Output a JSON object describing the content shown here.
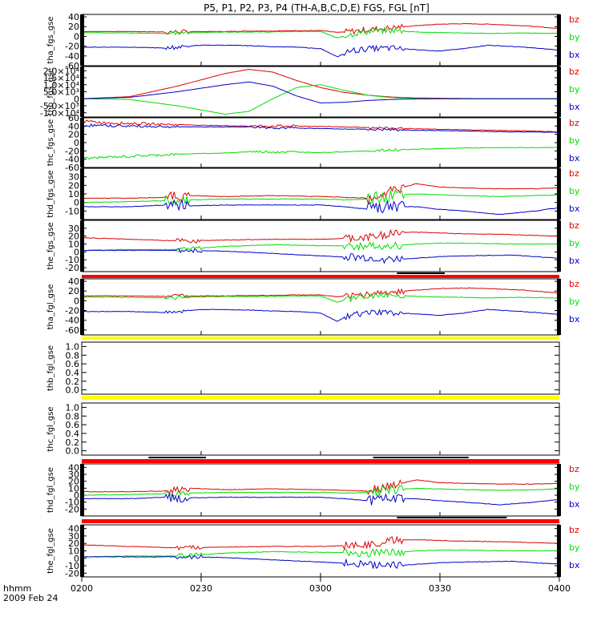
{
  "title": "P5, P1, P2, P3, P4 (TH-A,B,C,D,E) FGS, FGL [nT]",
  "colors": {
    "bz": "#dd0000",
    "by": "#00dd00",
    "bx": "#0000cc",
    "flag_red": "#ff0000",
    "flag_yellow": "#ffff00",
    "bar": "#000000"
  },
  "footer": {
    "unit": "hhmm",
    "date": "2009 Feb 24"
  },
  "chart_data": [
    {
      "type": "line",
      "label": "tha_fgs_gse",
      "ylim": [
        -60,
        45
      ],
      "ticks": [
        "40",
        "20",
        "0",
        "-20",
        "-40",
        "-60"
      ],
      "tickvals": [
        40,
        20,
        0,
        -20,
        -40,
        -60
      ],
      "legend": [
        "bz",
        "by",
        "bx"
      ],
      "x_hours": [
        2.0,
        2.2,
        2.35,
        2.5,
        2.6,
        2.7,
        2.8,
        2.9,
        3.0,
        3.07,
        3.12,
        3.2,
        3.3,
        3.4,
        3.5,
        3.6,
        3.7,
        3.85,
        4.0
      ],
      "series": [
        {
          "name": "bz",
          "values": [
            10,
            10,
            9,
            10,
            10,
            11,
            11,
            12,
            12,
            8,
            10,
            14,
            18,
            22,
            25,
            26,
            25,
            22,
            16
          ]
        },
        {
          "name": "by",
          "values": [
            8,
            7,
            6,
            8,
            9,
            9,
            9,
            10,
            10,
            -3,
            4,
            10,
            12,
            9,
            8,
            7,
            6,
            7,
            6
          ]
        },
        {
          "name": "bx",
          "values": [
            -22,
            -22,
            -24,
            -18,
            -18,
            -19,
            -21,
            -22,
            -25,
            -42,
            -30,
            -25,
            -24,
            -27,
            -30,
            -25,
            -18,
            -22,
            -28
          ]
        }
      ],
      "noise": [
        [
          2.35,
          2.45,
          4
        ],
        [
          3.1,
          3.35,
          6
        ]
      ]
    },
    {
      "type": "line",
      "label": "thb_fgs_gse",
      "ylim": [
        -13000,
        23000
      ],
      "ticks": [
        "2.0×10⁴",
        "1.5×10⁴",
        "1.0×10⁴",
        "5.0×10³",
        "0",
        "-5.0×10³",
        "-1.0×10⁴"
      ],
      "tickvals": [
        20000,
        15000,
        10000,
        5000,
        0,
        -5000,
        -10000
      ],
      "legend": [
        "bz",
        "by",
        "bx"
      ],
      "x_hours": [
        2.0,
        2.2,
        2.4,
        2.6,
        2.7,
        2.8,
        2.9,
        3.0,
        3.1,
        3.2,
        3.3,
        3.4,
        3.6,
        3.8,
        4.0
      ],
      "series": [
        {
          "name": "bz",
          "values": [
            0,
            1500,
            9000,
            18000,
            21000,
            19000,
            13000,
            8000,
            4500,
            2500,
            1200,
            600,
            200,
            0,
            0
          ]
        },
        {
          "name": "by",
          "values": [
            0,
            -500,
            -5000,
            -11000,
            -9000,
            0,
            8000,
            10000,
            6000,
            2500,
            800,
            200,
            0,
            0,
            0
          ]
        },
        {
          "name": "bx",
          "values": [
            0,
            1000,
            5000,
            10000,
            12000,
            9000,
            2000,
            -3000,
            -2500,
            -1200,
            -500,
            -100,
            0,
            0,
            0
          ]
        }
      ],
      "noise": []
    },
    {
      "type": "line",
      "label": "thc_fgs_gse",
      "ylim": [
        -60,
        60
      ],
      "ticks": [
        "60",
        "40",
        "20",
        "0",
        "-20",
        "-40",
        "-60"
      ],
      "tickvals": [
        60,
        40,
        20,
        0,
        -20,
        -40,
        -60
      ],
      "legend": [
        "bz",
        "by",
        "bx"
      ],
      "x_hours": [
        2.0,
        2.2,
        2.4,
        2.6,
        2.7,
        2.8,
        3.0,
        3.2,
        3.4,
        3.6,
        3.8,
        4.0
      ],
      "series": [
        {
          "name": "bz",
          "values": [
            52,
            48,
            45,
            42,
            40,
            40,
            38,
            35,
            32,
            30,
            28,
            26
          ],
          "x": [
            2.0,
            2.1,
            2.3,
            2.5,
            2.7,
            2.9,
            3.1,
            3.3,
            3.5,
            3.7,
            3.9,
            4.0
          ]
        },
        {
          "name": "by",
          "values": [
            -38,
            -33,
            -28,
            -25,
            -22,
            -22,
            -24,
            -20,
            -16,
            -13,
            -12,
            -12
          ]
        },
        {
          "name": "bx",
          "values": [
            42,
            40,
            38,
            38,
            38,
            36,
            34,
            32,
            30,
            28,
            26,
            25
          ]
        }
      ],
      "noise": [
        [
          2.0,
          2.4,
          3
        ],
        [
          2.7,
          2.9,
          3
        ],
        [
          3.2,
          3.35,
          3
        ]
      ]
    },
    {
      "type": "line",
      "label": "thd_fgs_gse",
      "ylim": [
        -20,
        40
      ],
      "ticks": [
        "30",
        "20",
        "10",
        "0",
        "-10"
      ],
      "tickvals": [
        30,
        20,
        10,
        0,
        -10
      ],
      "legend": [
        "bz",
        "by",
        "bx"
      ],
      "x_hours": [
        2.0,
        2.2,
        2.35,
        2.45,
        2.6,
        2.8,
        3.0,
        3.1,
        3.2,
        3.3,
        3.4,
        3.5,
        3.6,
        3.75,
        3.9,
        4.0
      ],
      "series": [
        {
          "name": "bz",
          "values": [
            5,
            5,
            6,
            8,
            7,
            8,
            7,
            6,
            5,
            14,
            22,
            18,
            17,
            16,
            16,
            17
          ]
        },
        {
          "name": "by",
          "values": [
            0,
            1,
            2,
            3,
            4,
            4,
            4,
            3,
            4,
            8,
            10,
            9,
            8,
            7,
            8,
            9
          ]
        },
        {
          "name": "bx",
          "values": [
            -5,
            -5,
            -3,
            -4,
            -3,
            -3,
            -3,
            -5,
            -8,
            -5,
            -5,
            -8,
            -10,
            -14,
            -10,
            -6
          ]
        }
      ],
      "noise": [
        [
          2.35,
          2.45,
          6
        ],
        [
          3.2,
          3.35,
          7
        ]
      ]
    },
    {
      "type": "line",
      "label": "the_fgs_gse",
      "ylim": [
        -25,
        40
      ],
      "ticks": [
        "30",
        "20",
        "10",
        "0",
        "-10",
        "-20"
      ],
      "tickvals": [
        30,
        20,
        10,
        0,
        -10,
        -20
      ],
      "legend": [
        "bz",
        "by",
        "bx"
      ],
      "x_hours": [
        2.0,
        2.2,
        2.4,
        2.6,
        2.8,
        3.0,
        3.2,
        3.3,
        3.4,
        3.5,
        3.6,
        3.8,
        4.0
      ],
      "series": [
        {
          "name": "bz",
          "values": [
            18,
            16,
            14,
            15,
            16,
            16,
            18,
            24,
            25,
            24,
            23,
            22,
            20
          ]
        },
        {
          "name": "by",
          "values": [
            2,
            3,
            3,
            7,
            9,
            8,
            7,
            8,
            10,
            11,
            11,
            10,
            10
          ]
        },
        {
          "name": "bx",
          "values": [
            2,
            2,
            2,
            1,
            -2,
            -5,
            -8,
            -10,
            -8,
            -6,
            -5,
            -4,
            -8
          ]
        }
      ],
      "noise": [
        [
          2.4,
          2.5,
          3
        ],
        [
          3.1,
          3.35,
          5
        ]
      ]
    },
    {
      "type": "line",
      "label": "tha_fgl_gse",
      "ylim": [
        -70,
        45
      ],
      "ticks": [
        "40",
        "20",
        "0",
        "-20",
        "-40",
        "-60"
      ],
      "tickvals": [
        40,
        20,
        0,
        -20,
        -40,
        -60
      ],
      "legend": [
        "bz",
        "by",
        "bx"
      ],
      "x_hours": [
        2.0,
        2.2,
        2.35,
        2.5,
        2.6,
        2.7,
        2.8,
        2.9,
        3.0,
        3.07,
        3.12,
        3.2,
        3.3,
        3.4,
        3.5,
        3.6,
        3.7,
        3.85,
        4.0
      ],
      "series": [
        {
          "name": "bz",
          "values": [
            10,
            10,
            9,
            10,
            10,
            11,
            11,
            12,
            12,
            8,
            10,
            14,
            18,
            22,
            25,
            26,
            25,
            22,
            16
          ]
        },
        {
          "name": "by",
          "values": [
            8,
            7,
            6,
            8,
            9,
            9,
            9,
            10,
            10,
            -3,
            4,
            10,
            12,
            9,
            8,
            7,
            6,
            7,
            6
          ]
        },
        {
          "name": "bx",
          "values": [
            -22,
            -22,
            -24,
            -18,
            -18,
            -19,
            -21,
            -22,
            -25,
            -42,
            -30,
            -25,
            -24,
            -27,
            -30,
            -25,
            -18,
            -22,
            -28
          ]
        }
      ],
      "noise": [
        [
          2.35,
          2.45,
          4
        ],
        [
          3.1,
          3.35,
          6
        ]
      ]
    },
    {
      "type": "line",
      "label": "thb_fgl_gse",
      "ylim": [
        -0.1,
        1.1
      ],
      "ticks": [
        "1.0",
        "0.8",
        "0.6",
        "0.4",
        "0.2",
        "0.0"
      ],
      "tickvals": [
        1.0,
        0.8,
        0.6,
        0.4,
        0.2,
        0.0
      ],
      "legend": [],
      "x_hours": [],
      "series": [],
      "noise": []
    },
    {
      "type": "line",
      "label": "thc_fgl_gse",
      "ylim": [
        -0.1,
        1.1
      ],
      "ticks": [
        "1.0",
        "0.8",
        "0.6",
        "0.4",
        "0.2",
        "0.0"
      ],
      "tickvals": [
        1.0,
        0.8,
        0.6,
        0.4,
        0.2,
        0.0
      ],
      "legend": [],
      "x_hours": [],
      "series": [],
      "noise": []
    },
    {
      "type": "line",
      "label": "thd_fgl_gse",
      "ylim": [
        -30,
        45
      ],
      "ticks": [
        "40",
        "30",
        "20",
        "10",
        "0",
        "-10",
        "-20"
      ],
      "tickvals": [
        40,
        30,
        20,
        10,
        0,
        -10,
        -20
      ],
      "legend": [
        "bz",
        "by",
        "bx"
      ],
      "x_hours": [
        2.0,
        2.2,
        2.35,
        2.45,
        2.6,
        2.8,
        3.0,
        3.1,
        3.2,
        3.3,
        3.4,
        3.5,
        3.6,
        3.75,
        3.9,
        4.0
      ],
      "series": [
        {
          "name": "bz",
          "values": [
            5,
            5,
            6,
            10,
            8,
            9,
            8,
            7,
            6,
            14,
            22,
            18,
            17,
            16,
            16,
            17
          ]
        },
        {
          "name": "by",
          "values": [
            0,
            1,
            2,
            3,
            4,
            4,
            4,
            3,
            4,
            8,
            10,
            9,
            8,
            7,
            8,
            9
          ]
        },
        {
          "name": "bx",
          "values": [
            -5,
            -5,
            -3,
            -4,
            -3,
            -3,
            -3,
            -5,
            -8,
            -5,
            -5,
            -8,
            -10,
            -14,
            -10,
            -6
          ]
        }
      ],
      "noise": [
        [
          2.35,
          2.45,
          6
        ],
        [
          3.2,
          3.35,
          7
        ]
      ]
    },
    {
      "type": "line",
      "label": "the_fgl_gse",
      "ylim": [
        -25,
        45
      ],
      "ticks": [
        "40",
        "30",
        "20",
        "10",
        "0",
        "-10",
        "-20"
      ],
      "tickvals": [
        40,
        30,
        20,
        10,
        0,
        -10,
        -20
      ],
      "legend": [
        "bz",
        "by",
        "bx"
      ],
      "x_hours": [
        2.0,
        2.2,
        2.4,
        2.6,
        2.8,
        3.0,
        3.2,
        3.3,
        3.4,
        3.5,
        3.6,
        3.8,
        4.0
      ],
      "series": [
        {
          "name": "bz",
          "values": [
            18,
            16,
            14,
            15,
            16,
            16,
            18,
            24,
            25,
            24,
            23,
            22,
            20
          ]
        },
        {
          "name": "by",
          "values": [
            2,
            3,
            3,
            7,
            9,
            8,
            7,
            8,
            10,
            11,
            11,
            10,
            10
          ]
        },
        {
          "name": "bx",
          "values": [
            2,
            2,
            2,
            1,
            -2,
            -5,
            -8,
            -10,
            -8,
            -6,
            -5,
            -4,
            -8
          ]
        }
      ],
      "noise": [
        [
          2.4,
          2.5,
          3
        ],
        [
          3.1,
          3.35,
          5
        ]
      ]
    }
  ],
  "flags": [
    {
      "after": 4,
      "color": "red",
      "bars": [
        [
          3.32,
          3.52
        ]
      ]
    },
    {
      "after": 5,
      "color": "yellow",
      "bars": []
    },
    {
      "after": 6,
      "color": "yellow",
      "bars": []
    },
    {
      "after": 7,
      "color": "red",
      "bars": [
        [
          2.28,
          2.52
        ],
        [
          3.22,
          3.62
        ]
      ]
    },
    {
      "after": 8,
      "color": "red",
      "bars": [
        [
          3.32,
          3.78
        ]
      ]
    }
  ],
  "xaxis": {
    "ticks": [
      "0200",
      "0230",
      "0300",
      "0330",
      "0400"
    ],
    "tickvals": [
      2.0,
      2.5,
      3.0,
      3.5,
      4.0
    ],
    "xlim": [
      2.0,
      4.0
    ]
  }
}
